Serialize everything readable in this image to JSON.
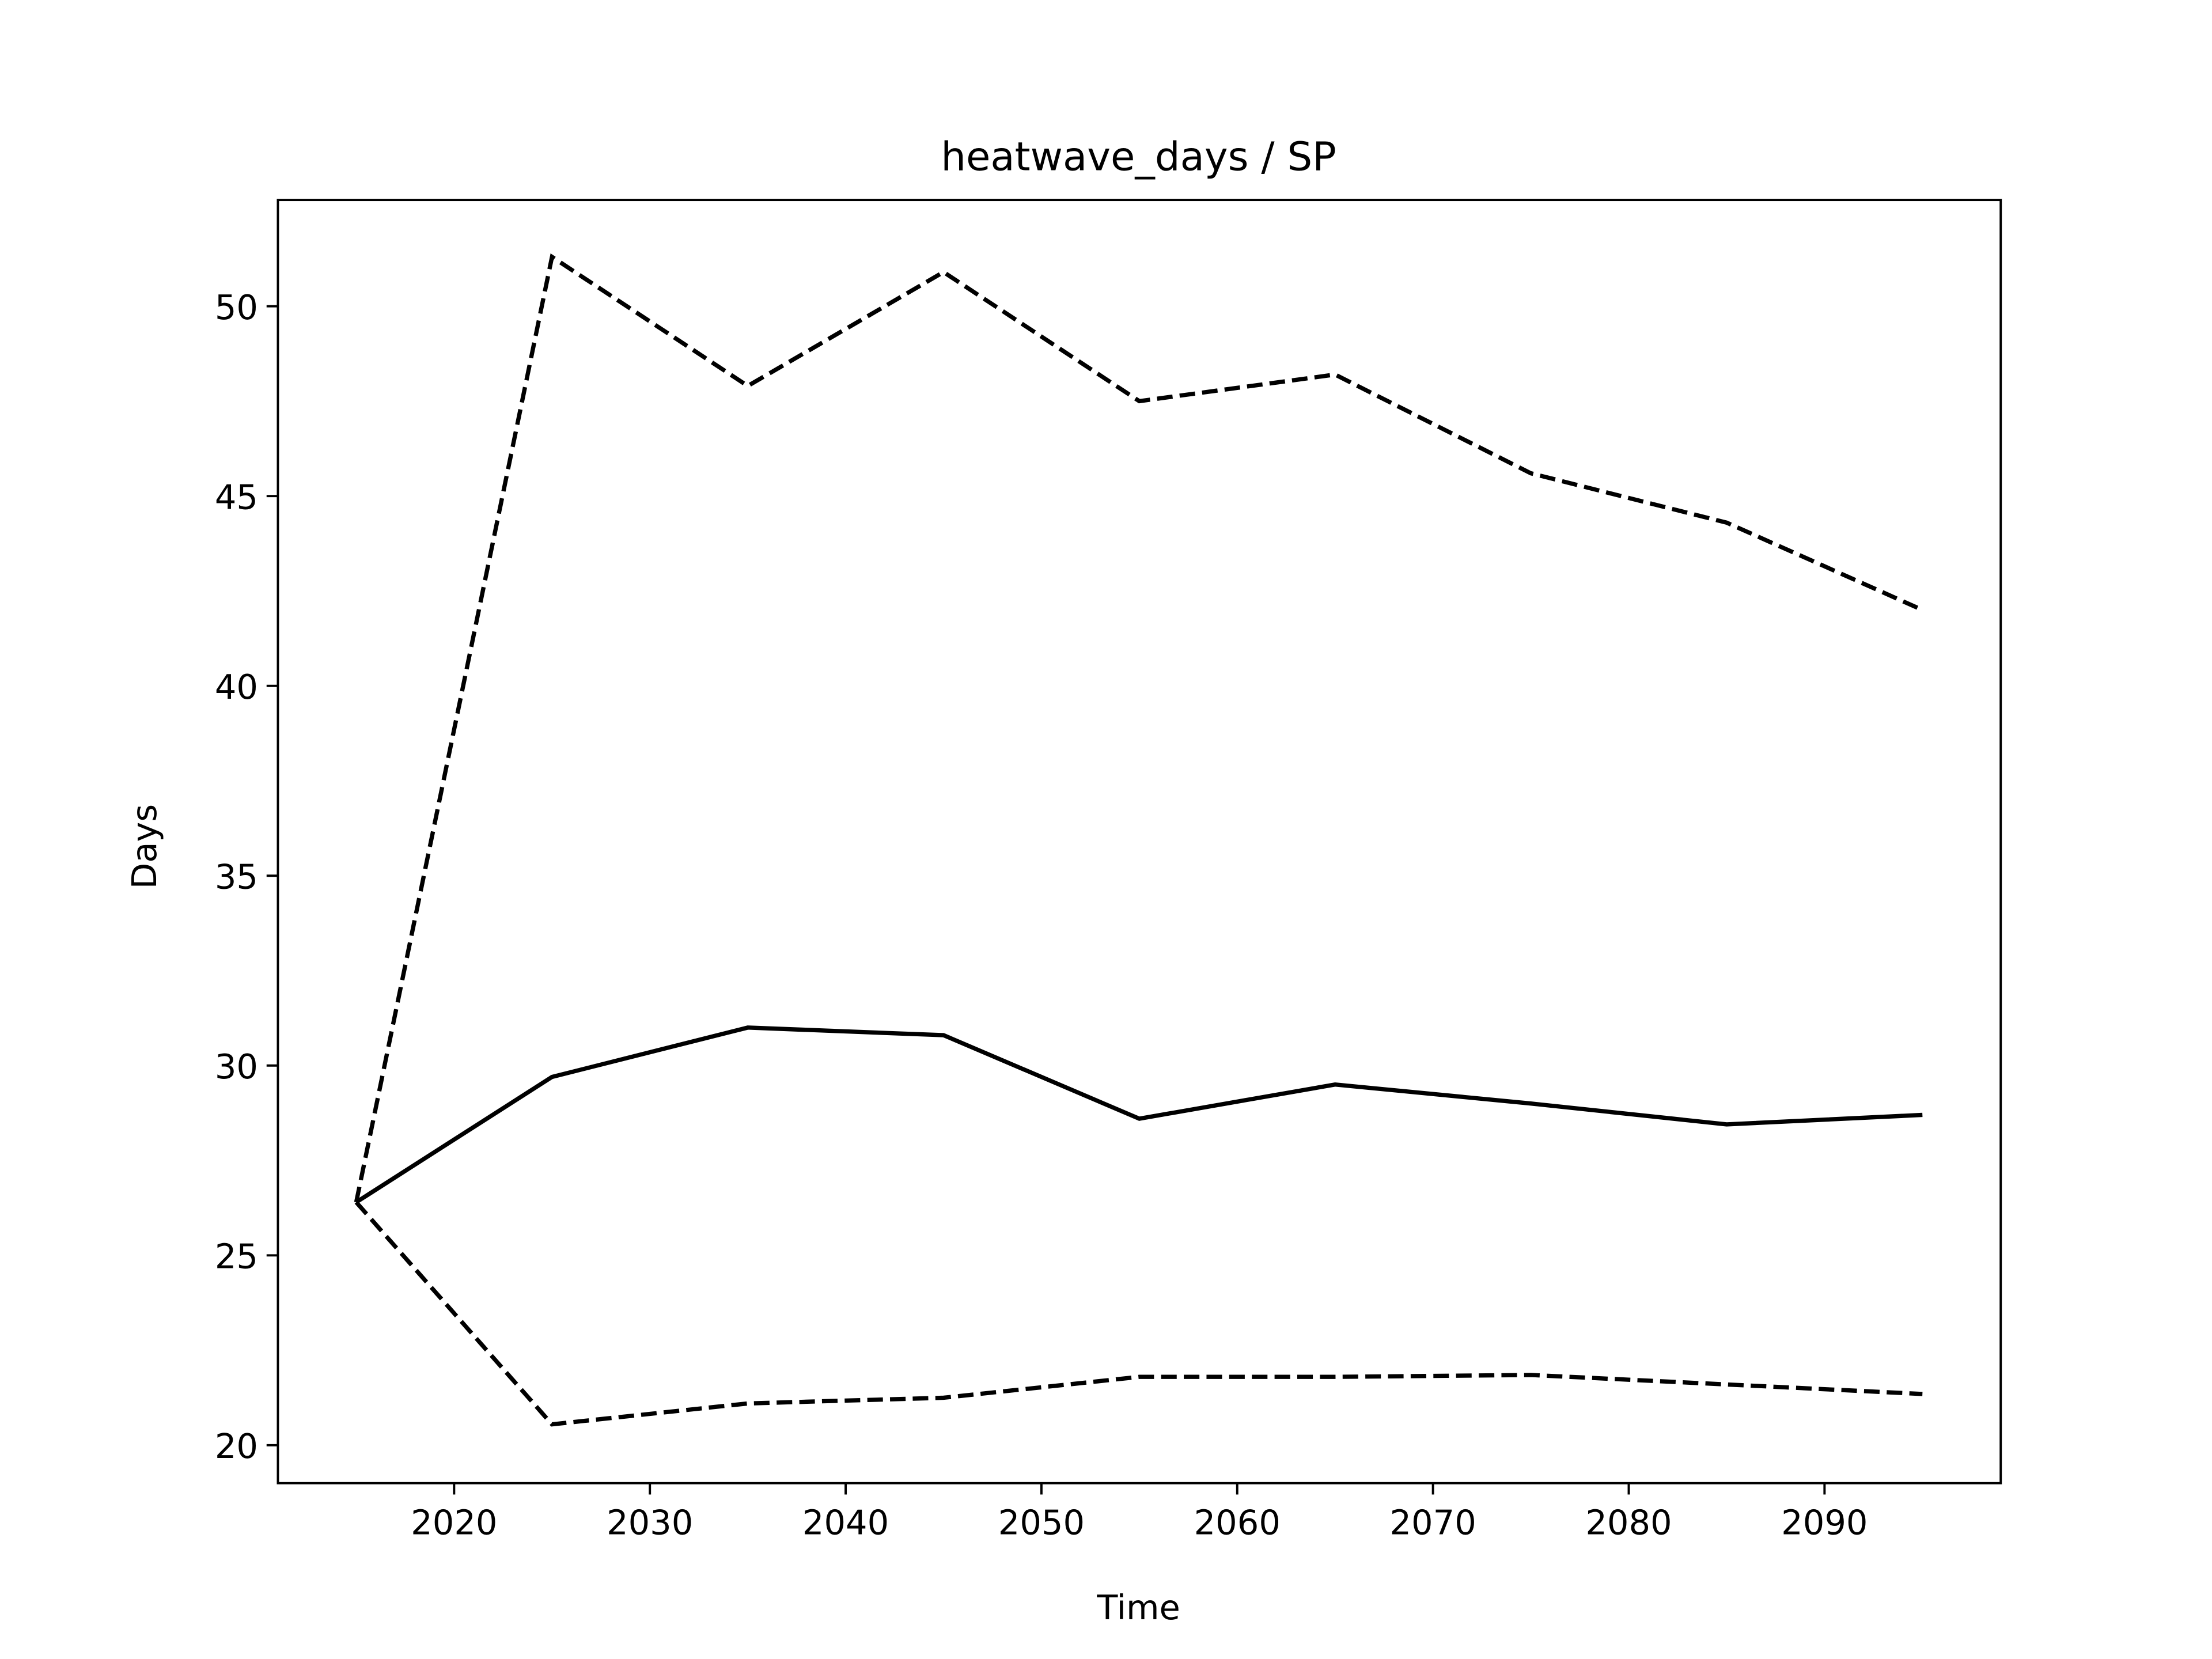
{
  "chart_data": {
    "type": "line",
    "title": "heatwave_days / SP",
    "xlabel": "Time",
    "ylabel": "Days",
    "xlim": [
      2011,
      2099
    ],
    "ylim": [
      19.0,
      52.8
    ],
    "xticks": [
      2020,
      2030,
      2040,
      2050,
      2060,
      2070,
      2080,
      2090
    ],
    "yticks": [
      20,
      25,
      30,
      35,
      40,
      45,
      50
    ],
    "grid": false,
    "legend": "none",
    "x": [
      2015,
      2025,
      2035,
      2045,
      2055,
      2065,
      2075,
      2085,
      2095
    ],
    "series": [
      {
        "style": "solid",
        "color": "#000000",
        "values": [
          26.4,
          29.7,
          31.0,
          30.8,
          28.6,
          29.5,
          29.0,
          28.45,
          28.7
        ]
      },
      {
        "style": "dashed",
        "color": "#000000",
        "values": [
          26.4,
          51.3,
          47.9,
          50.9,
          47.5,
          48.2,
          45.6,
          44.3,
          42.0
        ]
      },
      {
        "style": "dashed",
        "color": "#000000",
        "values": [
          26.4,
          20.55,
          21.1,
          21.25,
          21.8,
          21.8,
          21.85,
          21.6,
          21.35
        ]
      }
    ]
  }
}
